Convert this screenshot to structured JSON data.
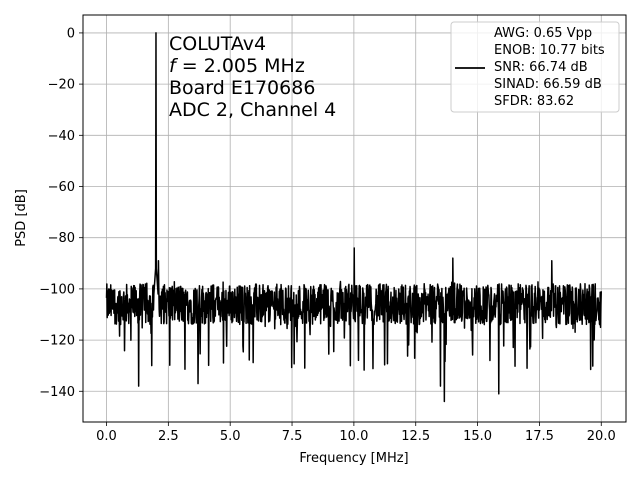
{
  "chart_data": {
    "type": "line",
    "xlabel": "Frequency [MHz]",
    "ylabel": "PSD [dB]",
    "xlim": [
      -0.95,
      21.0
    ],
    "ylim": [
      -152,
      7
    ],
    "xticks": [
      0.0,
      2.5,
      5.0,
      7.5,
      10.0,
      12.5,
      15.0,
      17.5,
      20.0
    ],
    "xtick_labels": [
      "0.0",
      "2.5",
      "5.0",
      "7.5",
      "10.0",
      "12.5",
      "15.0",
      "17.5",
      "20.0"
    ],
    "yticks": [
      0,
      -20,
      -40,
      -60,
      -80,
      -100,
      -120,
      -140
    ],
    "ytick_labels": [
      "0",
      "−20",
      "−40",
      "−60",
      "−80",
      "−100",
      "−120",
      "−140"
    ],
    "grid": true,
    "line_color": "#000000",
    "annotation": {
      "line1": "COLUTAv4",
      "line2_var": "f",
      "line2_rest": " = 2.005 MHz",
      "line3": "Board E170686",
      "line4": "ADC 2, Channel 4"
    },
    "legend": {
      "placement": "top-right",
      "entries": [
        "AWG: 0.65 Vpp",
        "ENOB: 10.77 bits",
        "SNR: 66.74 dB",
        "SINAD: 66.59 dB",
        "SFDR: 83.62"
      ]
    },
    "noise_floor_db": -106,
    "x_range": [
      0.0,
      20.0
    ],
    "series": [
      {
        "peaks": [
          {
            "x": 2.005,
            "y": 0
          },
          {
            "x": 10.02,
            "y": -84
          },
          {
            "x": 14.0,
            "y": -88
          },
          {
            "x": 18.0,
            "y": -89
          },
          {
            "x": 2.1,
            "y": -89
          }
        ],
        "dips": [
          {
            "x": 1.3,
            "y": -138
          },
          {
            "x": 3.7,
            "y": -137
          },
          {
            "x": 13.5,
            "y": -138
          },
          {
            "x": 13.65,
            "y": -144
          },
          {
            "x": 15.85,
            "y": -141
          },
          {
            "x": 9.85,
            "y": -130
          },
          {
            "x": 17.0,
            "y": -131
          }
        ]
      }
    ]
  }
}
